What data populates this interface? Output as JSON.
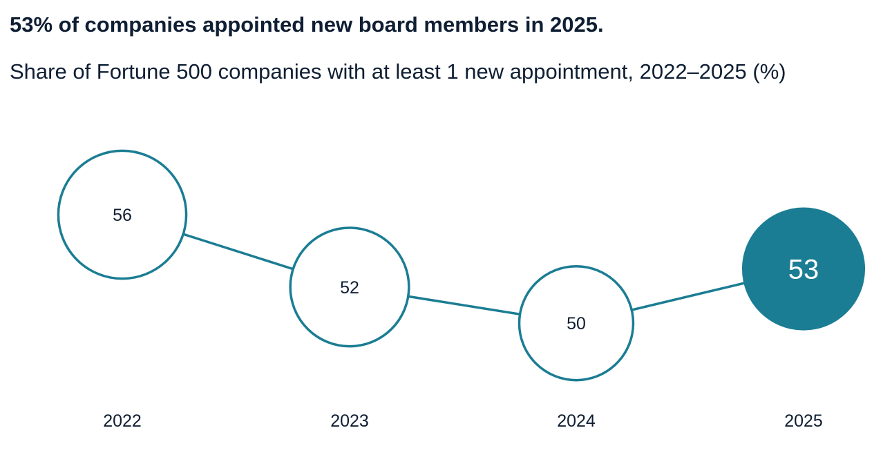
{
  "chart_data": {
    "type": "line",
    "title": "53% of companies appointed new board members in 2025.",
    "subtitle": "Share of Fortune 500 companies with at least 1 new appointment, 2022–2025 (%)",
    "categories": [
      "2022",
      "2023",
      "2024",
      "2025"
    ],
    "values": [
      56,
      52,
      50,
      53
    ],
    "highlight": "2025",
    "grid": false,
    "colors": {
      "accent": "#1b7d93",
      "text": "#0f1e33"
    }
  }
}
